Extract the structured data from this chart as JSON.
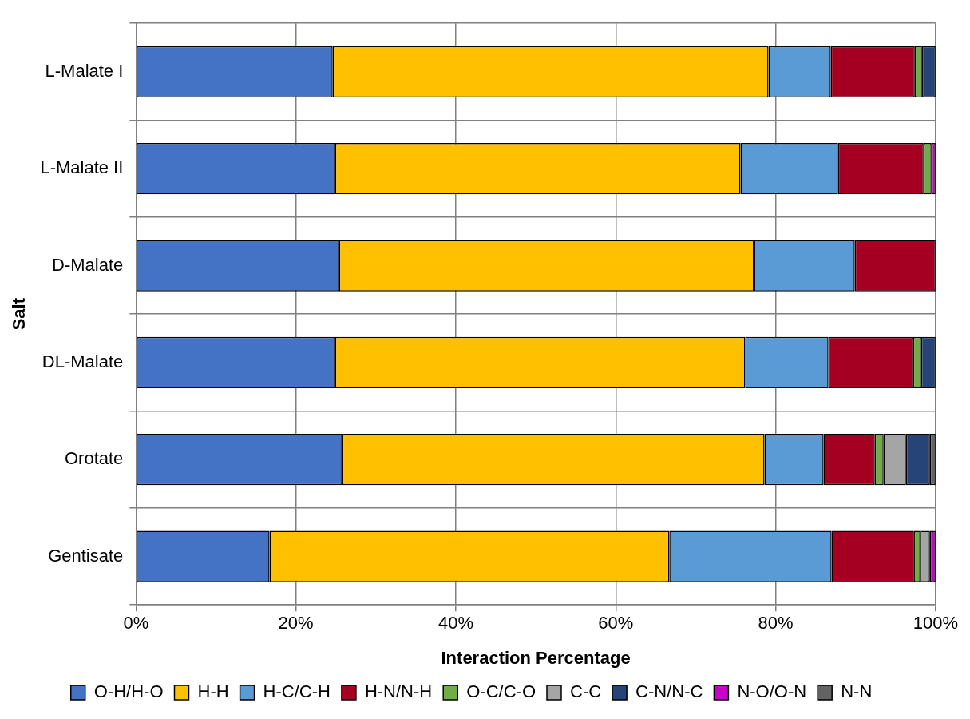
{
  "chart_data": {
    "type": "bar",
    "orientation": "horizontal",
    "stacked": true,
    "xlabel": "Interaction Percentage",
    "ylabel": "Salt",
    "categories": [
      "L-Malate I",
      "L-Malate II",
      "D-Malate",
      "DL-Malate",
      "Orotate",
      "Gentisate"
    ],
    "xlim": [
      0,
      100
    ],
    "xticks": [
      {
        "value": 0,
        "label": "0%"
      },
      {
        "value": 20,
        "label": "20%"
      },
      {
        "value": 40,
        "label": "40%"
      },
      {
        "value": 60,
        "label": "60%"
      },
      {
        "value": 80,
        "label": "80%"
      },
      {
        "value": 100,
        "label": "100%"
      }
    ],
    "grid": true,
    "legend": "bottom",
    "series": [
      {
        "name": "O-H/H-O",
        "color": "#4472c4",
        "values": [
          24.6,
          24.9,
          25.4,
          24.9,
          25.8,
          16.7
        ]
      },
      {
        "name": "H-H",
        "color": "#ffc000",
        "values": [
          54.5,
          50.7,
          51.9,
          51.3,
          52.8,
          50.0
        ]
      },
      {
        "name": "H-C/C-H",
        "color": "#5b9bd5",
        "values": [
          7.8,
          12.2,
          12.6,
          10.4,
          7.4,
          20.3
        ]
      },
      {
        "name": "H-N/N-H",
        "color": "#a50021",
        "values": [
          10.5,
          10.7,
          10.1,
          10.6,
          6.4,
          10.3
        ]
      },
      {
        "name": "O-C/C-O",
        "color": "#70ad47",
        "values": [
          0.9,
          1.0,
          null,
          1.0,
          1.1,
          0.8
        ]
      },
      {
        "name": "C-C",
        "color": "#a5a5a5",
        "values": [
          null,
          null,
          null,
          null,
          2.8,
          1.2
        ]
      },
      {
        "name": "C-N/N-C",
        "color": "#264478",
        "values": [
          1.7,
          null,
          null,
          1.8,
          3.0,
          null
        ]
      },
      {
        "name": "N-O/O-N",
        "color": "#cc00cc",
        "values": [
          null,
          0.5,
          null,
          null,
          null,
          0.7
        ]
      },
      {
        "name": "N-N",
        "color": "#636363",
        "values": [
          null,
          null,
          null,
          null,
          0.7,
          null
        ]
      }
    ]
  }
}
